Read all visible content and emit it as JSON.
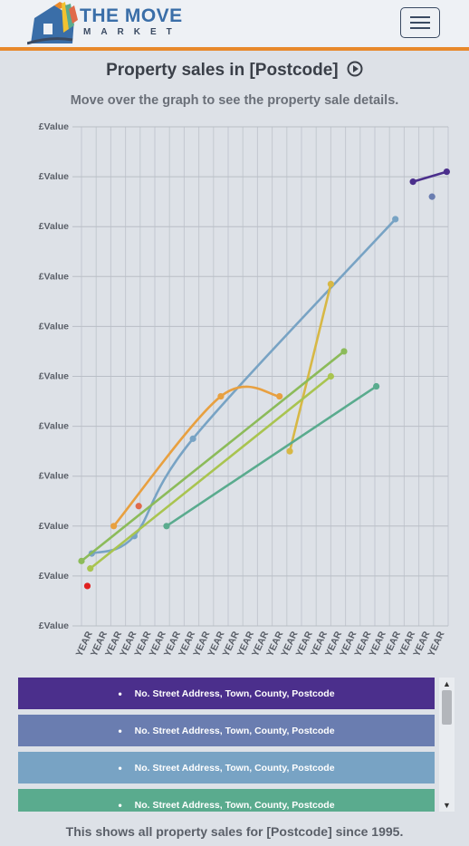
{
  "header": {
    "logo_line1": "THE MOVE",
    "logo_line2": "MARKET",
    "menu_icon": "hamburger-menu-icon"
  },
  "page": {
    "title": "Property sales in [Postcode]",
    "subtitle": "Move over the graph to see the property sale details.",
    "footer": "This shows all property sales for [Postcode] since 1995."
  },
  "chart_data": {
    "type": "line",
    "title": "",
    "xlabel": "",
    "ylabel": "",
    "ytick_labels": [
      "£Value",
      "£Value",
      "£Value",
      "£Value",
      "£Value",
      "£Value",
      "£Value",
      "£Value",
      "£Value",
      "£Value",
      "£Value"
    ],
    "xtick_labels": [
      "YEAR",
      "YEAR",
      "YEAR",
      "YEAR",
      "YEAR",
      "YEAR",
      "YEAR",
      "YEAR",
      "YEAR",
      "YEAR",
      "YEAR",
      "YEAR",
      "YEAR",
      "YEAR",
      "YEAR",
      "YEAR",
      "YEAR",
      "YEAR",
      "YEAR",
      "YEAR",
      "YEAR",
      "YEAR",
      "YEAR",
      "YEAR",
      "YEAR"
    ],
    "xlim": [
      0,
      25
    ],
    "ylim": [
      0,
      10
    ],
    "grid": true,
    "series": [
      {
        "color": "#4b2f8c",
        "smooth": false,
        "points": [
          [
            22.6,
            8.9
          ],
          [
            24.9,
            9.1
          ]
        ]
      },
      {
        "color": "#6a7db0",
        "smooth": false,
        "points": [
          [
            23.9,
            8.6
          ]
        ]
      },
      {
        "color": "#78a3c4",
        "smooth": true,
        "points": [
          [
            0.7,
            1.45
          ],
          [
            3.6,
            1.8
          ],
          [
            7.6,
            3.75
          ],
          [
            21.4,
            8.15
          ]
        ]
      },
      {
        "color": "#e8a040",
        "smooth": true,
        "points": [
          [
            2.2,
            2.0
          ],
          [
            9.5,
            4.6
          ],
          [
            13.5,
            4.6
          ]
        ]
      },
      {
        "color": "#e06a4a",
        "smooth": false,
        "points": [
          [
            3.9,
            2.4
          ]
        ]
      },
      {
        "color": "#d7b845",
        "smooth": false,
        "points": [
          [
            14.2,
            3.5
          ],
          [
            17.0,
            6.85
          ]
        ]
      },
      {
        "color": "#8cbb5a",
        "smooth": false,
        "points": [
          [
            0.0,
            1.3
          ],
          [
            17.9,
            5.5
          ]
        ]
      },
      {
        "color": "#a9c450",
        "smooth": false,
        "points": [
          [
            0.6,
            1.15
          ],
          [
            17.0,
            5.0
          ]
        ]
      },
      {
        "color": "#5aab8e",
        "smooth": false,
        "points": [
          [
            5.8,
            2.0
          ],
          [
            20.1,
            4.8
          ]
        ]
      },
      {
        "color": "#e02020",
        "smooth": false,
        "points": [
          [
            0.4,
            0.8
          ]
        ]
      }
    ]
  },
  "legend_list": {
    "items": [
      {
        "label": "No. Street Address, Town, County, Postcode",
        "color": "#4b2f8c"
      },
      {
        "label": "No. Street Address, Town, County, Postcode",
        "color": "#6a7db0"
      },
      {
        "label": "No. Street Address, Town, County, Postcode",
        "color": "#78a3c4"
      },
      {
        "label": "No. Street Address, Town, County, Postcode",
        "color": "#5aab8e"
      }
    ]
  }
}
